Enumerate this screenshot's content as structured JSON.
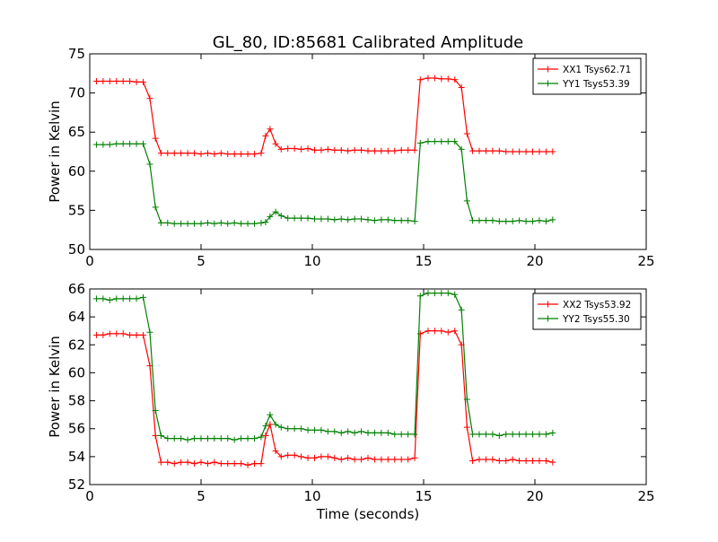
{
  "page_title": "GL_80, ID:85681 Calibrated Amplitude",
  "shared_xlabel": "Time (seconds)",
  "colors": {
    "xx": "#ff0000",
    "yy": "#008000",
    "axes": "#000000"
  },
  "chart_data": [
    {
      "type": "line",
      "title": "GL_80, ID:85681 Calibrated Amplitude",
      "xlabel": "",
      "ylabel": "Power in Kelvin",
      "xlim": [
        0,
        25
      ],
      "ylim": [
        50,
        75
      ],
      "xticks": [
        0,
        5,
        10,
        15,
        20,
        25
      ],
      "yticks": [
        50,
        55,
        60,
        65,
        70,
        75
      ],
      "grid": false,
      "legend_position": "top-right",
      "marker": "plus",
      "series": [
        {
          "name": "XX1 Tsys62.71",
          "color": "#ff0000",
          "x": [
            0.3,
            0.6,
            0.9,
            1.2,
            1.5,
            1.8,
            2.1,
            2.4,
            2.7,
            2.95,
            3.2,
            3.5,
            3.8,
            4.1,
            4.4,
            4.7,
            5.0,
            5.3,
            5.6,
            5.9,
            6.2,
            6.5,
            6.8,
            7.1,
            7.4,
            7.7,
            7.9,
            8.1,
            8.35,
            8.6,
            8.9,
            9.2,
            9.5,
            9.8,
            10.1,
            10.4,
            10.7,
            11.0,
            11.3,
            11.6,
            11.9,
            12.2,
            12.5,
            12.8,
            13.1,
            13.4,
            13.7,
            14.0,
            14.3,
            14.6,
            14.85,
            15.2,
            15.5,
            15.8,
            16.1,
            16.4,
            16.7,
            16.95,
            17.2,
            17.5,
            17.8,
            18.1,
            18.4,
            18.7,
            19.0,
            19.3,
            19.6,
            19.9,
            20.2,
            20.5,
            20.8
          ],
          "y": [
            71.5,
            71.5,
            71.5,
            71.5,
            71.5,
            71.5,
            71.4,
            71.4,
            69.3,
            64.2,
            62.3,
            62.3,
            62.3,
            62.3,
            62.3,
            62.3,
            62.2,
            62.3,
            62.2,
            62.3,
            62.2,
            62.2,
            62.2,
            62.2,
            62.2,
            62.3,
            64.5,
            65.4,
            63.5,
            62.8,
            62.9,
            62.9,
            62.8,
            62.9,
            62.7,
            62.7,
            62.8,
            62.7,
            62.7,
            62.6,
            62.7,
            62.7,
            62.6,
            62.6,
            62.6,
            62.6,
            62.6,
            62.7,
            62.7,
            62.7,
            71.7,
            71.9,
            71.9,
            71.8,
            71.8,
            71.7,
            70.7,
            64.8,
            62.6,
            62.6,
            62.6,
            62.6,
            62.6,
            62.5,
            62.5,
            62.5,
            62.5,
            62.5,
            62.5,
            62.5,
            62.5
          ]
        },
        {
          "name": "YY1 Tsys53.39",
          "color": "#008000",
          "x": [
            0.3,
            0.6,
            0.9,
            1.2,
            1.5,
            1.8,
            2.1,
            2.4,
            2.7,
            2.95,
            3.2,
            3.5,
            3.8,
            4.1,
            4.4,
            4.7,
            5.0,
            5.3,
            5.6,
            5.9,
            6.2,
            6.5,
            6.8,
            7.1,
            7.4,
            7.7,
            7.9,
            8.1,
            8.35,
            8.6,
            8.9,
            9.2,
            9.5,
            9.8,
            10.1,
            10.4,
            10.7,
            11.0,
            11.3,
            11.6,
            11.9,
            12.2,
            12.5,
            12.8,
            13.1,
            13.4,
            13.7,
            14.0,
            14.3,
            14.6,
            14.85,
            15.2,
            15.5,
            15.8,
            16.1,
            16.4,
            16.7,
            16.95,
            17.2,
            17.5,
            17.8,
            18.1,
            18.4,
            18.7,
            19.0,
            19.3,
            19.6,
            19.9,
            20.2,
            20.5,
            20.8
          ],
          "y": [
            63.4,
            63.4,
            63.4,
            63.5,
            63.5,
            63.5,
            63.5,
            63.5,
            60.9,
            55.4,
            53.4,
            53.4,
            53.3,
            53.3,
            53.3,
            53.3,
            53.3,
            53.4,
            53.3,
            53.4,
            53.3,
            53.4,
            53.3,
            53.3,
            53.3,
            53.4,
            53.5,
            54.2,
            54.8,
            54.3,
            54.0,
            54.0,
            54.0,
            54.0,
            53.9,
            53.9,
            53.9,
            53.8,
            53.9,
            53.8,
            53.9,
            53.9,
            53.8,
            53.7,
            53.8,
            53.8,
            53.7,
            53.7,
            53.7,
            53.6,
            63.6,
            63.8,
            63.8,
            63.8,
            63.8,
            63.8,
            62.8,
            56.2,
            53.7,
            53.7,
            53.7,
            53.7,
            53.6,
            53.6,
            53.6,
            53.7,
            53.6,
            53.6,
            53.7,
            53.6,
            53.8
          ]
        }
      ]
    },
    {
      "type": "line",
      "title": "",
      "xlabel": "Time (seconds)",
      "ylabel": "Power in Kelvin",
      "xlim": [
        0,
        25
      ],
      "ylim": [
        52,
        66
      ],
      "xticks": [
        0,
        5,
        10,
        15,
        20,
        25
      ],
      "yticks": [
        52,
        54,
        56,
        58,
        60,
        62,
        64,
        66
      ],
      "grid": false,
      "legend_position": "top-right",
      "marker": "plus",
      "series": [
        {
          "name": "XX2 Tsys53.92",
          "color": "#ff0000",
          "x": [
            0.3,
            0.6,
            0.9,
            1.2,
            1.5,
            1.8,
            2.1,
            2.4,
            2.7,
            2.95,
            3.2,
            3.5,
            3.8,
            4.1,
            4.4,
            4.7,
            5.0,
            5.3,
            5.6,
            5.9,
            6.2,
            6.5,
            6.8,
            7.1,
            7.4,
            7.7,
            7.9,
            8.1,
            8.35,
            8.6,
            8.9,
            9.2,
            9.5,
            9.8,
            10.1,
            10.4,
            10.7,
            11.0,
            11.3,
            11.6,
            11.9,
            12.2,
            12.5,
            12.8,
            13.1,
            13.4,
            13.7,
            14.0,
            14.3,
            14.6,
            14.85,
            15.2,
            15.5,
            15.8,
            16.1,
            16.4,
            16.7,
            16.95,
            17.2,
            17.5,
            17.8,
            18.1,
            18.4,
            18.7,
            19.0,
            19.3,
            19.6,
            19.9,
            20.2,
            20.5,
            20.8
          ],
          "y": [
            62.7,
            62.7,
            62.8,
            62.8,
            62.8,
            62.7,
            62.7,
            62.7,
            60.5,
            55.5,
            53.6,
            53.6,
            53.5,
            53.6,
            53.6,
            53.5,
            53.6,
            53.5,
            53.6,
            53.5,
            53.5,
            53.5,
            53.5,
            53.4,
            53.5,
            53.5,
            55.5,
            56.3,
            54.4,
            54.0,
            54.1,
            54.1,
            54.0,
            53.9,
            53.9,
            54.0,
            54.0,
            53.9,
            53.8,
            53.9,
            53.8,
            53.8,
            53.9,
            53.8,
            53.8,
            53.8,
            53.8,
            53.8,
            53.8,
            53.9,
            62.8,
            63.0,
            63.0,
            63.0,
            62.9,
            63.0,
            62.0,
            56.1,
            53.7,
            53.8,
            53.8,
            53.8,
            53.7,
            53.7,
            53.8,
            53.7,
            53.7,
            53.7,
            53.7,
            53.7,
            53.6
          ]
        },
        {
          "name": "YY2 Tsys55.30",
          "color": "#008000",
          "x": [
            0.3,
            0.6,
            0.9,
            1.2,
            1.5,
            1.8,
            2.1,
            2.4,
            2.7,
            2.95,
            3.2,
            3.5,
            3.8,
            4.1,
            4.4,
            4.7,
            5.0,
            5.3,
            5.6,
            5.9,
            6.2,
            6.5,
            6.8,
            7.1,
            7.4,
            7.7,
            7.9,
            8.1,
            8.35,
            8.6,
            8.9,
            9.2,
            9.5,
            9.8,
            10.1,
            10.4,
            10.7,
            11.0,
            11.3,
            11.6,
            11.9,
            12.2,
            12.5,
            12.8,
            13.1,
            13.4,
            13.7,
            14.0,
            14.3,
            14.6,
            14.85,
            15.2,
            15.5,
            15.8,
            16.1,
            16.4,
            16.7,
            16.95,
            17.2,
            17.5,
            17.8,
            18.1,
            18.4,
            18.7,
            19.0,
            19.3,
            19.6,
            19.9,
            20.2,
            20.5,
            20.8
          ],
          "y": [
            65.3,
            65.3,
            65.2,
            65.3,
            65.3,
            65.3,
            65.3,
            65.4,
            62.9,
            57.3,
            55.5,
            55.3,
            55.3,
            55.3,
            55.2,
            55.3,
            55.3,
            55.3,
            55.3,
            55.3,
            55.3,
            55.2,
            55.3,
            55.3,
            55.3,
            55.4,
            56.2,
            57.0,
            56.3,
            56.1,
            56.0,
            56.0,
            56.0,
            55.9,
            55.9,
            55.9,
            55.8,
            55.8,
            55.7,
            55.8,
            55.7,
            55.8,
            55.7,
            55.7,
            55.7,
            55.7,
            55.6,
            55.6,
            55.6,
            55.6,
            65.5,
            65.7,
            65.7,
            65.7,
            65.7,
            65.6,
            64.5,
            58.1,
            55.6,
            55.6,
            55.6,
            55.6,
            55.5,
            55.6,
            55.6,
            55.6,
            55.6,
            55.6,
            55.6,
            55.6,
            55.7
          ]
        }
      ]
    }
  ]
}
